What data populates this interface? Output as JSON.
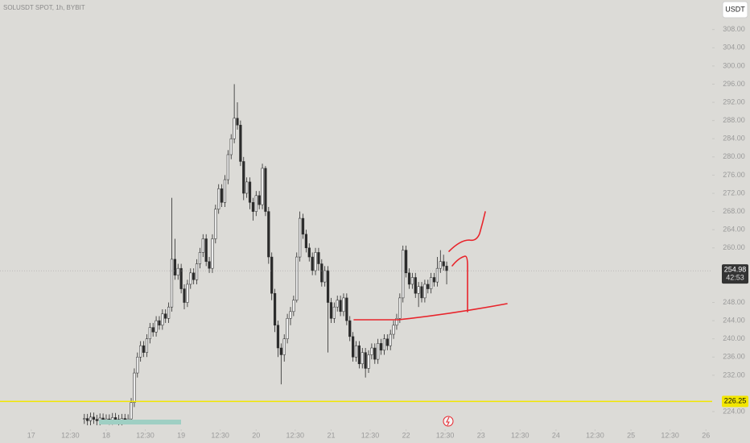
{
  "chart_data": {
    "type": "candlestick",
    "title": "SOLUSDT SPOT, 1h, BYBIT",
    "currency": "USDT",
    "countdown": "42:53",
    "up_color": "#ececec",
    "down_color": "#2b2b2b",
    "wick_color": "#2b2b2b",
    "x": [
      17,
      18,
      19,
      20,
      21,
      22,
      23,
      24,
      25,
      26,
      27,
      28,
      29,
      30,
      31,
      32,
      33,
      34,
      35,
      36,
      37,
      38,
      39,
      40,
      41,
      42,
      43,
      44,
      45,
      46,
      47,
      48,
      49,
      50,
      51,
      52,
      53,
      54,
      55,
      56,
      57,
      58,
      59,
      60,
      61,
      62,
      63,
      64,
      65,
      66,
      67,
      68,
      69,
      70,
      71,
      72,
      73,
      74,
      75,
      76,
      77,
      78,
      79,
      80,
      81,
      82,
      83,
      84,
      85,
      86,
      87,
      88,
      89,
      90,
      91,
      92,
      93,
      94,
      95,
      96,
      97,
      98,
      99,
      100,
      101,
      102,
      103,
      104,
      105,
      106,
      107,
      108,
      109,
      110,
      111,
      112,
      113,
      114,
      115,
      116,
      117,
      118,
      119,
      120,
      121,
      122,
      123,
      124,
      125,
      126,
      127,
      128,
      129,
      130,
      131,
      132,
      133
    ],
    "open": [
      222.3,
      222.5,
      222.0,
      222.8,
      222.3,
      222.0,
      222.6,
      222.2,
      222.4,
      222.1,
      222.7,
      222.3,
      222.0,
      222.5,
      222.2,
      222.4,
      226.0,
      232.5,
      236.0,
      238.5,
      237.0,
      240.0,
      242.5,
      241.5,
      244.0,
      243.0,
      245.5,
      244.5,
      247.0,
      257.5,
      254.0,
      255.5,
      251.0,
      248.0,
      252.0,
      254.5,
      253.0,
      256.5,
      259.0,
      262.0,
      257.0,
      255.5,
      262.0,
      268.5,
      273.0,
      270.0,
      275.0,
      280.5,
      284.0,
      288.5,
      287.0,
      279.0,
      272.0,
      274.5,
      270.0,
      268.0,
      271.5,
      269.5,
      277.5,
      268.0,
      258.0,
      250.0,
      243.0,
      238.0,
      236.5,
      240.0,
      244.5,
      246.0,
      248.5,
      258.0,
      266.5,
      263.0,
      260.0,
      258.0,
      255.0,
      259.0,
      256.5,
      252.5,
      255.0,
      248.0,
      244.5,
      247.0,
      248.5,
      246.0,
      249.0,
      244.0,
      240.5,
      236.0,
      238.5,
      234.5,
      237.0,
      233.5,
      236.5,
      238.0,
      235.5,
      239.0,
      237.5,
      240.0,
      238.5,
      241.0,
      243.0,
      244.5,
      249.0,
      259.5,
      254.5,
      252.0,
      253.5,
      250.0,
      251.5,
      249.0,
      252.0,
      251.0,
      253.5,
      252.5,
      255.5,
      257.0,
      256.0
    ],
    "high": [
      223.5,
      223.5,
      223.8,
      223.8,
      223.3,
      223.6,
      223.6,
      223.4,
      223.4,
      223.7,
      223.7,
      223.3,
      223.5,
      223.5,
      223.4,
      227.0,
      233.5,
      237.0,
      239.5,
      239.5,
      241.0,
      243.5,
      243.5,
      245.0,
      245.0,
      246.5,
      246.5,
      248.0,
      271.0,
      262.0,
      256.5,
      256.5,
      252.0,
      253.0,
      255.5,
      255.5,
      257.5,
      260.0,
      263.0,
      263.0,
      258.0,
      263.0,
      269.5,
      274.0,
      274.0,
      276.0,
      281.5,
      285.0,
      296.0,
      292.0,
      288.0,
      280.0,
      275.5,
      275.5,
      271.0,
      272.5,
      272.5,
      278.5,
      278.0,
      269.0,
      259.0,
      251.0,
      244.0,
      239.0,
      241.0,
      245.5,
      247.0,
      249.5,
      259.0,
      268.0,
      267.5,
      264.0,
      261.0,
      259.0,
      260.0,
      260.0,
      257.5,
      256.0,
      256.0,
      249.0,
      248.0,
      249.5,
      249.5,
      250.0,
      250.0,
      245.0,
      241.5,
      239.5,
      239.5,
      238.0,
      238.0,
      237.5,
      239.0,
      239.0,
      240.0,
      240.0,
      241.0,
      241.0,
      242.0,
      244.0,
      245.5,
      250.0,
      260.5,
      260.5,
      255.5,
      254.5,
      254.5,
      252.5,
      252.5,
      253.0,
      253.0,
      254.5,
      254.5,
      258.0,
      259.5,
      258.5,
      257.0
    ],
    "low": [
      221.3,
      221.0,
      221.0,
      221.3,
      221.0,
      221.0,
      221.2,
      221.2,
      221.1,
      221.1,
      221.3,
      221.0,
      221.0,
      221.2,
      221.2,
      221.4,
      225.0,
      231.5,
      235.0,
      236.0,
      236.0,
      239.0,
      240.5,
      240.5,
      242.0,
      242.0,
      243.5,
      243.5,
      246.0,
      253.0,
      253.0,
      250.0,
      246.5,
      247.0,
      251.0,
      252.0,
      252.0,
      255.5,
      258.0,
      256.0,
      254.5,
      254.5,
      261.0,
      267.5,
      269.0,
      269.0,
      274.0,
      279.5,
      283.0,
      286.0,
      278.0,
      270.5,
      271.0,
      268.5,
      266.0,
      267.0,
      268.5,
      268.5,
      267.0,
      256.5,
      248.5,
      241.5,
      236.0,
      230.0,
      235.0,
      239.0,
      243.0,
      245.0,
      248.0,
      257.0,
      262.0,
      259.0,
      257.0,
      254.0,
      254.0,
      255.0,
      251.5,
      251.5,
      237.0,
      243.5,
      243.5,
      246.0,
      245.0,
      245.0,
      243.0,
      239.5,
      235.0,
      235.0,
      233.5,
      233.5,
      231.5,
      232.5,
      235.5,
      234.5,
      234.5,
      236.5,
      236.5,
      237.5,
      237.5,
      240.0,
      242.0,
      243.5,
      248.0,
      253.5,
      251.0,
      251.0,
      249.0,
      247.0,
      248.0,
      248.0,
      250.0,
      250.0,
      251.5,
      251.5,
      254.5,
      255.0,
      252.0
    ],
    "close": [
      222.5,
      222.0,
      222.8,
      222.3,
      222.0,
      222.6,
      222.2,
      222.4,
      222.1,
      222.7,
      222.3,
      222.0,
      222.5,
      222.2,
      222.4,
      226.0,
      232.5,
      236.0,
      238.5,
      237.0,
      240.0,
      242.5,
      241.5,
      244.0,
      243.0,
      245.5,
      244.5,
      247.0,
      257.5,
      254.0,
      255.5,
      251.0,
      248.0,
      252.0,
      254.5,
      253.0,
      256.5,
      259.0,
      262.0,
      257.0,
      255.5,
      262.0,
      268.5,
      273.0,
      270.0,
      275.0,
      280.5,
      284.0,
      288.5,
      287.0,
      279.0,
      272.0,
      274.5,
      270.0,
      268.0,
      271.5,
      269.5,
      277.5,
      268.0,
      258.0,
      250.0,
      243.0,
      238.0,
      236.5,
      240.0,
      244.5,
      246.0,
      248.5,
      258.0,
      266.5,
      263.0,
      260.0,
      258.0,
      255.0,
      259.0,
      256.5,
      252.5,
      255.0,
      248.0,
      244.5,
      247.0,
      248.5,
      246.0,
      249.0,
      244.0,
      240.5,
      236.0,
      238.5,
      234.5,
      237.0,
      233.5,
      236.5,
      238.0,
      235.5,
      239.0,
      237.5,
      240.0,
      238.5,
      241.0,
      243.0,
      244.5,
      249.0,
      259.5,
      254.5,
      252.0,
      253.5,
      250.0,
      251.5,
      249.0,
      252.0,
      251.0,
      253.5,
      252.5,
      255.5,
      257.0,
      256.0,
      254.98
    ],
    "horizontal_line": {
      "value": 226.25,
      "color": "#f2e600"
    },
    "xlim": [
      -10,
      218
    ],
    "ylim": [
      221,
      314.5
    ],
    "xticks": [
      {
        "value": 0,
        "label": "17"
      },
      {
        "value": 12.5,
        "label": "12:30"
      },
      {
        "value": 24,
        "label": "18"
      },
      {
        "value": 36.5,
        "label": "12:30"
      },
      {
        "value": 48,
        "label": "19"
      },
      {
        "value": 60.5,
        "label": "12:30"
      },
      {
        "value": 72,
        "label": "20"
      },
      {
        "value": 84.5,
        "label": "12:30"
      },
      {
        "value": 96,
        "label": "21"
      },
      {
        "value": 108.5,
        "label": "12:30"
      },
      {
        "value": 120,
        "label": "22"
      },
      {
        "value": 132.5,
        "label": "12:30"
      },
      {
        "value": 144,
        "label": "23"
      },
      {
        "value": 156.5,
        "label": "12:30"
      },
      {
        "value": 168,
        "label": "24"
      },
      {
        "value": 180.5,
        "label": "12:30"
      },
      {
        "value": 192,
        "label": "25"
      },
      {
        "value": 204.5,
        "label": "12:30"
      },
      {
        "value": 216,
        "label": "26"
      }
    ],
    "yticks": [
      {
        "value": 308,
        "label": "308.00"
      },
      {
        "value": 304,
        "label": "304.00"
      },
      {
        "value": 300,
        "label": "300.00"
      },
      {
        "value": 296,
        "label": "296.00"
      },
      {
        "value": 292,
        "label": "292.00"
      },
      {
        "value": 288,
        "label": "288.00"
      },
      {
        "value": 284,
        "label": "284.00"
      },
      {
        "value": 280,
        "label": "280.00"
      },
      {
        "value": 276,
        "label": "276.00"
      },
      {
        "value": 272,
        "label": "272.00"
      },
      {
        "value": 268,
        "label": "268.00"
      },
      {
        "value": 264,
        "label": "264.00"
      },
      {
        "value": 260,
        "label": "260.00"
      },
      {
        "value": 248,
        "label": "248.00"
      },
      {
        "value": 244,
        "label": "244.00"
      },
      {
        "value": 240,
        "label": "240.00"
      },
      {
        "value": 236,
        "label": "236.00"
      },
      {
        "value": 232,
        "label": "232.00"
      },
      {
        "value": 224,
        "label": "224.00"
      }
    ]
  }
}
